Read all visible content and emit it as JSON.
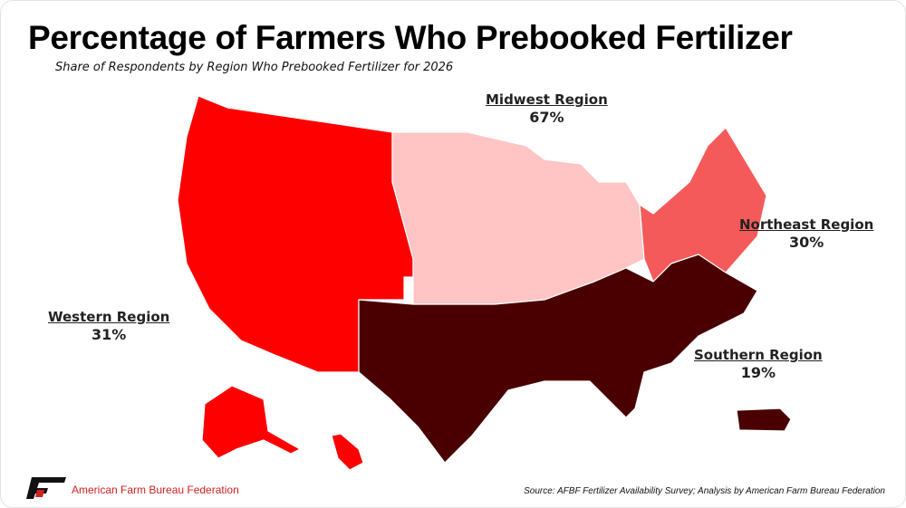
{
  "title": "Percentage of Farmers Who Prebooked Fertilizer",
  "subtitle": "Share of Respondents by Region Who Prebooked Fertilizer for 2026",
  "regions": [
    {
      "name": "Western Region",
      "value": "31%",
      "color": "#ff0000"
    },
    {
      "name": "Midwest Region",
      "value": "67%",
      "color": "#ffc4c4"
    },
    {
      "name": "Northeast Region",
      "value": "30%",
      "color": "#f55a5a"
    },
    {
      "name": "Southern Region",
      "value": "19%",
      "color": "#4a0000"
    }
  ],
  "footer": {
    "organization": "American Farm Bureau Federation",
    "logo_text": "FB",
    "source": "Source: AFBF Fertilizer Availability Survey; Analysis by American Farm Bureau Federation"
  }
}
